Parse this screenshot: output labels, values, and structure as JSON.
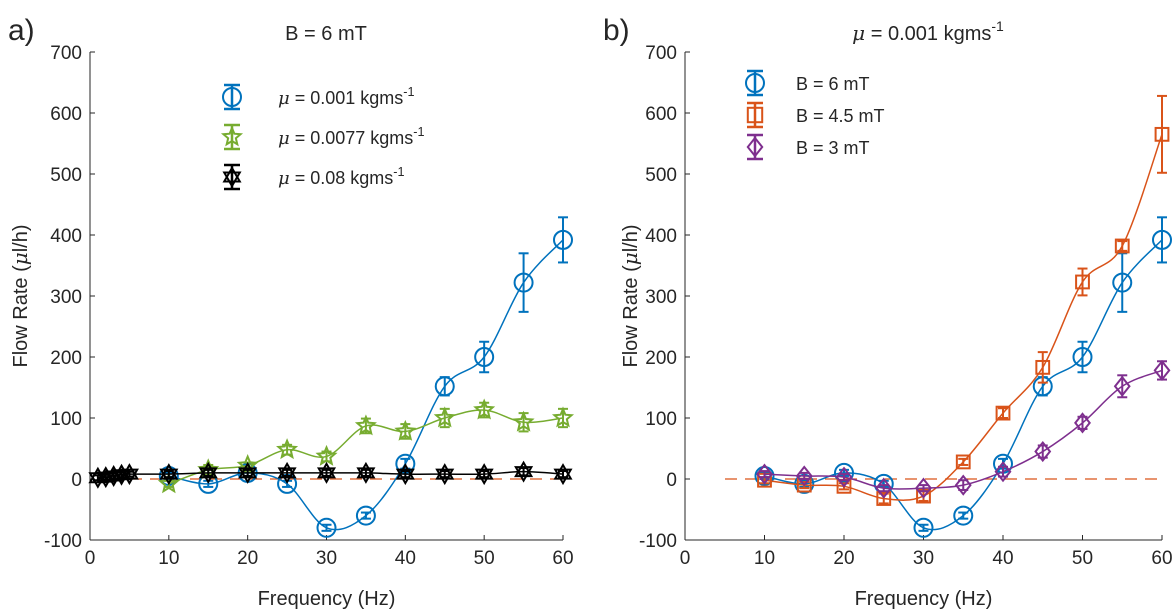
{
  "colors": {
    "blue": "#0072BD",
    "orange": "#D95319",
    "green": "#77AC30",
    "black": "#000000",
    "purple": "#7E2F8E",
    "zero_line": "#D95319"
  },
  "chart_data": [
    {
      "panel_label": "a)",
      "type": "line",
      "title": "B = 6 mT",
      "xlabel": "Frequency (Hz)",
      "ylabel": "Flow Rate (μl/h)",
      "xlim": [
        0,
        60
      ],
      "ylim": [
        -100,
        700
      ],
      "xticks": [
        0,
        10,
        20,
        30,
        40,
        50,
        60
      ],
      "yticks": [
        -100,
        0,
        100,
        200,
        300,
        400,
        500,
        600,
        700
      ],
      "zero_line": "dashed",
      "grid": false,
      "legend_position": "top-center",
      "series": [
        {
          "name": "μ = 0.001 kgms⁻¹",
          "color_key": "blue",
          "marker": "circle",
          "x": [
            10,
            15,
            20,
            25,
            30,
            35,
            40,
            45,
            50,
            55,
            60
          ],
          "y": [
            5,
            -8,
            10,
            -8,
            -80,
            -60,
            25,
            152,
            200,
            322,
            392
          ],
          "err": [
            5,
            5,
            5,
            5,
            5,
            5,
            8,
            15,
            25,
            48,
            37
          ]
        },
        {
          "name": "μ = 0.0077 kgms⁻¹",
          "color_key": "green",
          "marker": "star",
          "x": [
            10,
            15,
            20,
            25,
            30,
            35,
            40,
            45,
            50,
            55,
            60
          ],
          "y": [
            -8,
            15,
            22,
            48,
            37,
            87,
            78,
            100,
            113,
            93,
            100
          ],
          "err": [
            5,
            8,
            5,
            8,
            8,
            12,
            12,
            15,
            12,
            15,
            15
          ]
        },
        {
          "name": "μ = 0.08 kgms⁻¹",
          "color_key": "black",
          "marker": "hexagram",
          "x": [
            1,
            2,
            3,
            4,
            5,
            10,
            15,
            20,
            25,
            30,
            35,
            40,
            45,
            50,
            55,
            60
          ],
          "y": [
            2,
            3,
            5,
            7,
            8,
            8,
            10,
            10,
            10,
            10,
            10,
            8,
            8,
            8,
            12,
            8
          ],
          "err": [
            4,
            4,
            4,
            4,
            4,
            5,
            5,
            5,
            5,
            5,
            5,
            5,
            5,
            5,
            6,
            5
          ]
        }
      ]
    },
    {
      "panel_label": "b)",
      "type": "line",
      "title": "μ = 0.001 kgms⁻¹",
      "xlabel": "Frequency (Hz)",
      "ylabel": "Flow Rate (μl/h)",
      "xlim": [
        0,
        60
      ],
      "ylim": [
        -100,
        700
      ],
      "xticks": [
        0,
        10,
        20,
        30,
        40,
        50,
        60
      ],
      "yticks": [
        -100,
        0,
        100,
        200,
        300,
        400,
        500,
        600,
        700
      ],
      "zero_line": "dashed",
      "grid": false,
      "legend_position": "top-left",
      "series": [
        {
          "name": "B = 6 mT",
          "color_key": "blue",
          "marker": "circle",
          "x": [
            10,
            15,
            20,
            25,
            30,
            35,
            40,
            45,
            50,
            55,
            60
          ],
          "y": [
            5,
            -8,
            10,
            -8,
            -80,
            -60,
            25,
            152,
            200,
            322,
            392
          ],
          "err": [
            5,
            5,
            5,
            5,
            5,
            5,
            8,
            15,
            25,
            48,
            37
          ]
        },
        {
          "name": "B = 4.5 mT",
          "color_key": "orange",
          "marker": "square",
          "x": [
            10,
            15,
            20,
            25,
            30,
            35,
            40,
            45,
            50,
            55,
            60
          ],
          "y": [
            -2,
            -10,
            -12,
            -32,
            -28,
            28,
            108,
            183,
            323,
            382,
            565
          ],
          "err": [
            5,
            5,
            5,
            8,
            8,
            5,
            8,
            25,
            22,
            8,
            63
          ]
        },
        {
          "name": "B = 3 mT",
          "color_key": "purple",
          "marker": "diamond",
          "x": [
            10,
            15,
            20,
            25,
            30,
            35,
            40,
            45,
            50,
            55,
            60
          ],
          "y": [
            8,
            5,
            3,
            -15,
            -15,
            -10,
            12,
            45,
            92,
            152,
            178
          ],
          "err": [
            5,
            5,
            5,
            5,
            5,
            8,
            8,
            10,
            10,
            18,
            15
          ]
        }
      ]
    }
  ]
}
